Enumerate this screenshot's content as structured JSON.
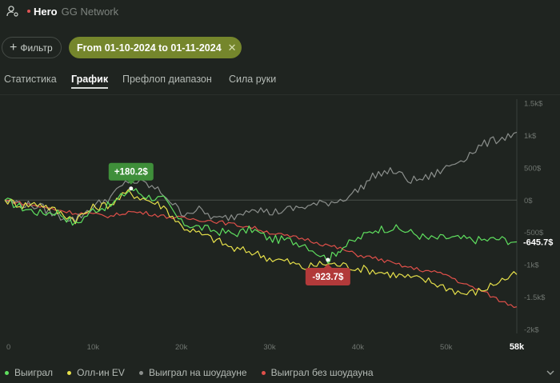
{
  "header": {
    "hero": "Hero",
    "network": "GG Network"
  },
  "filter": {
    "button_label": "Фильтр",
    "date_chip": "From 01-10-2024 to 01-11-2024"
  },
  "tabs": [
    {
      "label": "Статистика",
      "active": false
    },
    {
      "label": "График",
      "active": true
    },
    {
      "label": "Префлоп диапазон",
      "active": false
    },
    {
      "label": "Сила руки",
      "active": false
    }
  ],
  "legend": [
    {
      "label": "Выиграл",
      "color": "#5fe05f"
    },
    {
      "label": "Олл-ин EV",
      "color": "#e6e04a"
    },
    {
      "label": "Выиграл на шоудауне",
      "color": "#8b8f8c"
    },
    {
      "label": "Выиграл без шоудауна",
      "color": "#e0504a"
    }
  ],
  "chart_data": {
    "type": "line",
    "xlabel": "",
    "ylabel": "",
    "x_ticks": [
      "0",
      "10k",
      "20k",
      "30k",
      "40k",
      "50k"
    ],
    "x_max_label": "58k",
    "y_ticks": [
      "1.5k$",
      "1k$",
      "500$",
      "0$",
      "-500$",
      "-1k$",
      "-1.5k$",
      "-2k$"
    ],
    "xlim": [
      0,
      58000
    ],
    "ylim": [
      -2000,
      1500
    ],
    "annotations": [
      {
        "label": "+180.2$",
        "x": 14300,
        "y": 180.2
      },
      {
        "label": "-923.7$",
        "x": 36600,
        "y": -923.7
      }
    ],
    "end_labels": [
      "-645.7$",
      ""
    ],
    "series": [
      {
        "name": "Выиграл",
        "color": "#5fe05f",
        "x": [
          0,
          2000,
          4000,
          6000,
          8000,
          10000,
          12000,
          14300,
          16000,
          18000,
          20000,
          22000,
          24000,
          26000,
          28000,
          30000,
          32000,
          34000,
          36600,
          38000,
          40000,
          42000,
          44000,
          46000,
          48000,
          50000,
          52000,
          54000,
          56000,
          58000
        ],
        "y": [
          0,
          -120,
          -200,
          -180,
          -380,
          -150,
          -80,
          180,
          60,
          10,
          -350,
          -420,
          -480,
          -520,
          -450,
          -600,
          -620,
          -680,
          -923,
          -750,
          -600,
          -450,
          -430,
          -500,
          -600,
          -580,
          -600,
          -620,
          -600,
          -645.7
        ]
      },
      {
        "name": "Олл-ин EV",
        "color": "#e6e04a",
        "x": [
          0,
          2000,
          4000,
          6000,
          8000,
          10000,
          12000,
          14000,
          16000,
          18000,
          20000,
          22000,
          24000,
          26000,
          28000,
          30000,
          32000,
          34000,
          36000,
          38000,
          40000,
          42000,
          44000,
          46000,
          48000,
          50000,
          52000,
          54000,
          56000,
          58000
        ],
        "y": [
          0,
          -80,
          -50,
          -180,
          -300,
          -120,
          -60,
          120,
          10,
          -100,
          -400,
          -520,
          -620,
          -760,
          -800,
          -900,
          -950,
          -1050,
          -980,
          -1000,
          -1050,
          -1100,
          -1150,
          -1200,
          -1250,
          -1350,
          -1450,
          -1400,
          -1250,
          -1150
        ]
      },
      {
        "name": "Выиграл на шоудауне",
        "color": "#8b8f8c",
        "x": [
          0,
          2000,
          4000,
          6000,
          8000,
          10000,
          12000,
          14000,
          16000,
          18000,
          20000,
          22000,
          24000,
          26000,
          28000,
          30000,
          32000,
          34000,
          36000,
          38000,
          40000,
          42000,
          44000,
          46000,
          48000,
          50000,
          52000,
          54000,
          56000,
          58000
        ],
        "y": [
          0,
          -60,
          -100,
          -250,
          -300,
          -100,
          50,
          300,
          250,
          100,
          -200,
          -150,
          -300,
          -250,
          -100,
          -200,
          -150,
          -100,
          -50,
          0,
          150,
          400,
          450,
          300,
          350,
          500,
          650,
          850,
          950,
          1050
        ]
      },
      {
        "name": "Выиграл без шоудауна",
        "color": "#e0504a",
        "x": [
          0,
          2000,
          4000,
          6000,
          8000,
          10000,
          12000,
          14000,
          16000,
          18000,
          20000,
          22000,
          24000,
          26000,
          28000,
          30000,
          32000,
          34000,
          36000,
          38000,
          40000,
          42000,
          44000,
          46000,
          48000,
          50000,
          52000,
          54000,
          56000,
          58000
        ],
        "y": [
          0,
          -50,
          -100,
          -150,
          -200,
          -220,
          -250,
          -180,
          -200,
          -250,
          -280,
          -300,
          -330,
          -380,
          -420,
          -500,
          -560,
          -600,
          -680,
          -750,
          -850,
          -900,
          -980,
          -1050,
          -1100,
          -1150,
          -1300,
          -1400,
          -1550,
          -1650
        ]
      }
    ]
  }
}
